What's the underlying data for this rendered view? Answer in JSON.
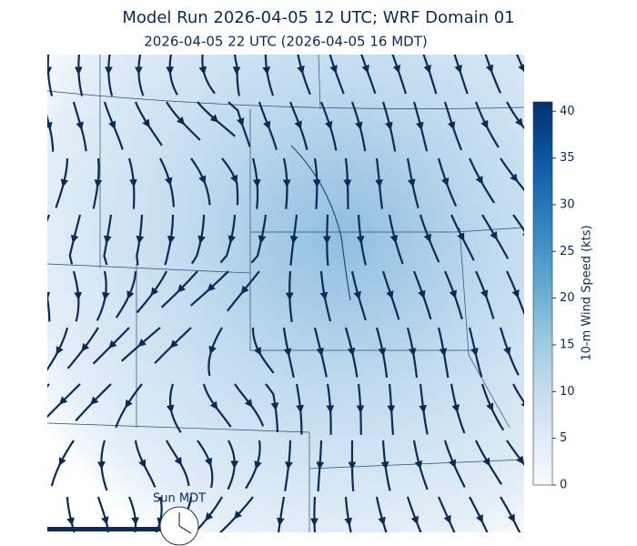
{
  "title": "Model Run 2026-04-05 12 UTC; WRF Domain 01",
  "subtitle": "2026-04-05 22 UTC  (2026-04-05 16 MDT)",
  "clock_label": "Sun MDT",
  "colorbar": {
    "label": "10-m Wind Speed (kts)",
    "lim": [
      0,
      41
    ],
    "ticks": [
      0,
      5,
      10,
      15,
      20,
      25,
      30,
      35,
      40
    ],
    "colors": [
      "#f7fbff",
      "#deebf7",
      "#c6dbef",
      "#9ecae1",
      "#6baed6",
      "#4292c6",
      "#2171b5",
      "#08519c",
      "#08306b"
    ]
  }
}
